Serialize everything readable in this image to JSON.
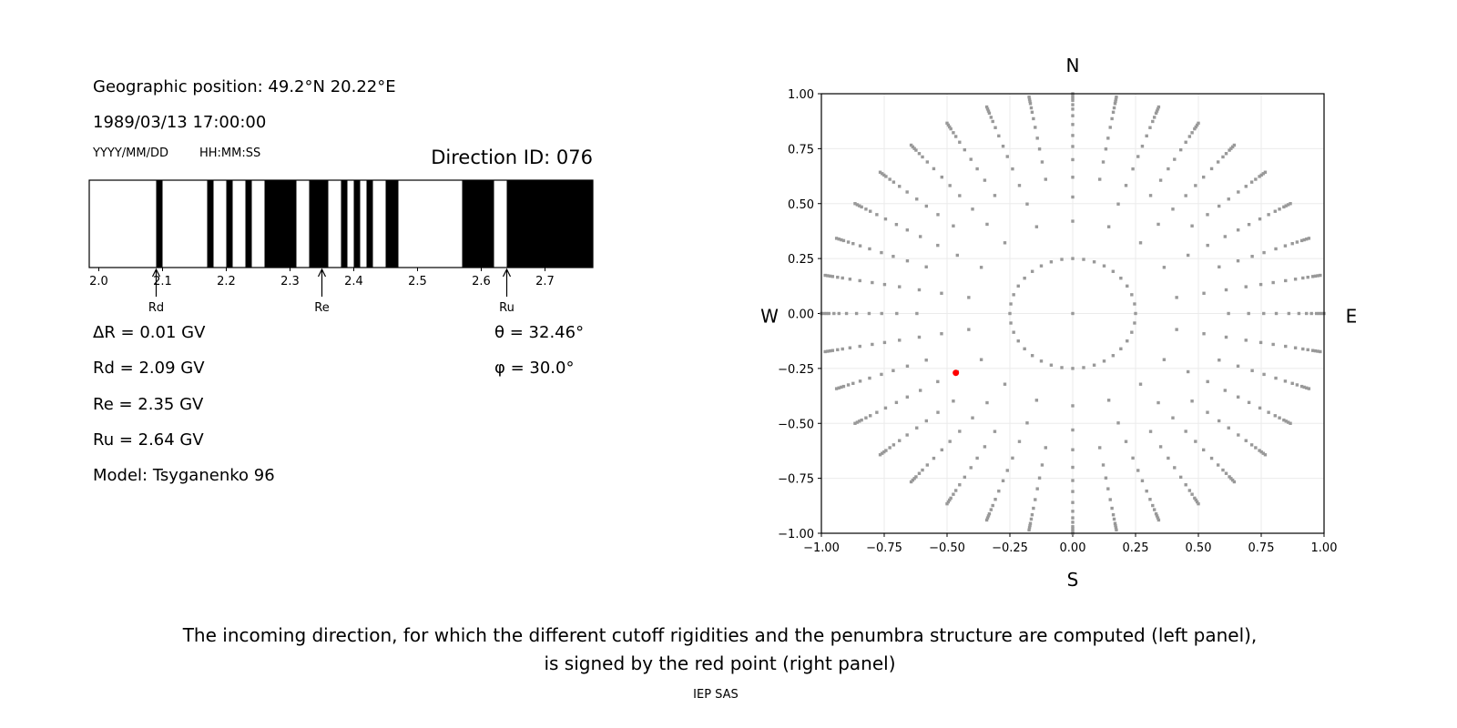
{
  "left_panel": {
    "geo_position": "Geographic position: 49.2°N 20.22°E",
    "datetime": "1989/03/13 17:00:00",
    "date_format": "YYYY/MM/DD",
    "time_format": "HH:MM:SS",
    "direction_id": "Direction ID: 076",
    "delta_r": "ΔR = 0.01 GV",
    "rd": "Rd = 2.09 GV",
    "re": "Re = 2.35 GV",
    "ru": "Ru = 2.64 GV",
    "model": "Model: Tsyganenko 96",
    "theta": "θ = 32.46°",
    "phi": "φ = 30.0°"
  },
  "chart_data": [
    {
      "type": "bar",
      "description_kind": "penumbra",
      "xlim": [
        1.985,
        2.775
      ],
      "xticks": [
        "2.0",
        "2.1",
        "2.2",
        "2.3",
        "2.4",
        "2.5",
        "2.6",
        "2.7"
      ],
      "forbidden_bands_black": [
        [
          2.09,
          2.1
        ],
        [
          2.17,
          2.18
        ],
        [
          2.2,
          2.21
        ],
        [
          2.23,
          2.24
        ],
        [
          2.26,
          2.31
        ],
        [
          2.33,
          2.36
        ],
        [
          2.38,
          2.39
        ],
        [
          2.4,
          2.41
        ],
        [
          2.42,
          2.43
        ],
        [
          2.45,
          2.47
        ],
        [
          2.57,
          2.62
        ],
        [
          2.64,
          2.775
        ]
      ],
      "allowed_color": "#ffffff",
      "forbidden_color": "#000000",
      "markers": [
        {
          "label": "Rd",
          "value": 2.09
        },
        {
          "label": "Re",
          "value": 2.35
        },
        {
          "label": "Ru",
          "value": 2.64
        }
      ]
    },
    {
      "type": "scatter",
      "xlim": [
        -1,
        1
      ],
      "ylim": [
        -1,
        1
      ],
      "xticks": [
        "−1.00",
        "−0.75",
        "−0.50",
        "−0.25",
        "0.00",
        "0.25",
        "0.50",
        "0.75",
        "1.00"
      ],
      "yticks": [
        "−1.00",
        "−0.75",
        "−0.50",
        "−0.25",
        "0.00",
        "0.25",
        "0.50",
        "0.75",
        "1.00"
      ],
      "grid": true,
      "directions": {
        "north": "N",
        "south": "S",
        "west": "W",
        "east": "E"
      },
      "grid_points": {
        "inner_ring_radius": 0.25,
        "inner_ring_azimuth_step_deg": 10,
        "ray_azimuth_step_deg": 10,
        "ray_radii": [
          0.42,
          0.53,
          0.62,
          0.7,
          0.76,
          0.81,
          0.86,
          0.9,
          0.93,
          0.95,
          0.97,
          0.98,
          0.99,
          1.0
        ],
        "color": "#999999"
      },
      "selected_point": {
        "x": -0.465,
        "y": -0.27,
        "color": "#ff0000"
      }
    }
  ],
  "caption": {
    "line1": "The incoming direction, for which the different cutoff rigidities and the penumbra structure are computed (left panel),",
    "line2": "is signed by the red point (right panel)",
    "credit": "IEP SAS"
  }
}
